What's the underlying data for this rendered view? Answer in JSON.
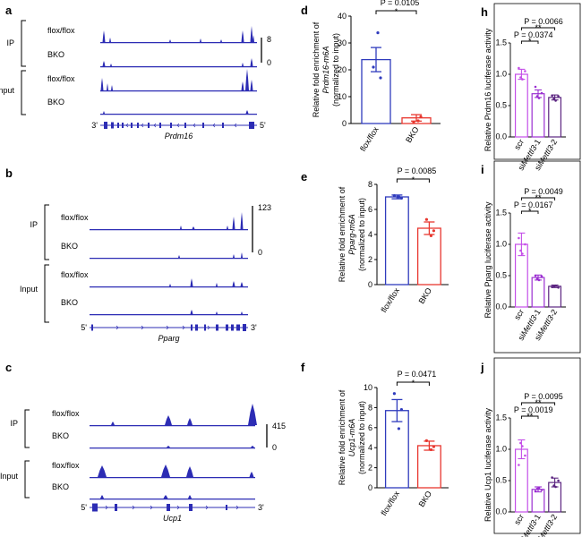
{
  "colors": {
    "track": "#2c2cb4",
    "blue": "#2f3bbd",
    "red": "#e8372f",
    "violet": "#c44ee8",
    "violet_dark": "#9b2fd1",
    "purple_dark": "#5b2480"
  },
  "panels": {
    "a": {
      "letter": "a",
      "gene": "Prdm16",
      "scale_max": "8",
      "scale_min": "0",
      "left_end": "3'",
      "right_end": "5'"
    },
    "b": {
      "letter": "b",
      "gene": "Pparg",
      "scale_max": "123",
      "scale_min": "0",
      "left_end": "5'",
      "right_end": "3'"
    },
    "c": {
      "letter": "c",
      "gene": "Ucp1",
      "scale_max": "415",
      "scale_min": "0",
      "left_end": "5'",
      "right_end": "3'"
    }
  },
  "track_labels": {
    "ip": "IP",
    "input": "Input",
    "flox": "flox/flox",
    "bko": "BKO"
  },
  "chart_data": [
    {
      "id": "d",
      "type": "bar",
      "title": "P = 0.0105",
      "significance": "*",
      "ylabel": [
        "Relative fold enrichment of",
        "Prdm16-m6A",
        "(normalized to input)"
      ],
      "categories": [
        "flox/flox",
        "BKO"
      ],
      "values": [
        23.8,
        2.1
      ],
      "errors": [
        4.5,
        1.2
      ],
      "points": [
        [
          21,
          33.8,
          17
        ],
        [
          0.5,
          1,
          2.5
        ]
      ],
      "ylim": [
        0,
        40
      ],
      "yticks": [
        0,
        10,
        20,
        30,
        40
      ]
    },
    {
      "id": "e",
      "type": "bar",
      "title": "P = 0.0085",
      "significance": "*",
      "ylabel": [
        "Relative fold enrichment of",
        "Pparg-m6A",
        "(normalized to input)"
      ],
      "categories": [
        "flox/flox",
        "BKO"
      ],
      "values": [
        7.0,
        4.5
      ],
      "errors": [
        0.15,
        0.5
      ],
      "points": [
        [
          7.1,
          7.0,
          6.9
        ],
        [
          5.2,
          3.9,
          4.3
        ]
      ],
      "ylim": [
        0,
        8
      ],
      "yticks": [
        0,
        2,
        4,
        6,
        8
      ]
    },
    {
      "id": "f",
      "type": "bar",
      "title": "P = 0.0471",
      "significance": "*",
      "ylabel": [
        "Relative fold enrichment of",
        "Ucp1-m6A",
        "(normalized to input)"
      ],
      "categories": [
        "flox/flox",
        "BKO"
      ],
      "values": [
        7.7,
        4.2
      ],
      "errors": [
        1.1,
        0.45
      ],
      "points": [
        [
          9.4,
          5.9,
          7.8
        ],
        [
          4.7,
          3.8,
          4.1
        ]
      ],
      "ylim": [
        0,
        10
      ],
      "yticks": [
        0,
        2,
        4,
        6,
        8,
        10
      ]
    },
    {
      "id": "h",
      "type": "bar",
      "title_top": "P = 0.0066",
      "title_mid": "P = 0.0374",
      "sig_top": "**",
      "sig_mid": "*",
      "ylabel": [
        "Relative Prdm16 luciferase activity"
      ],
      "categories": [
        "scr",
        "siMettl3-1",
        "siMettl3-2"
      ],
      "values": [
        1.0,
        0.69,
        0.63
      ],
      "errors": [
        0.08,
        0.06,
        0.04
      ],
      "points": [
        [
          1.1,
          0.92,
          1.05,
          0.95
        ],
        [
          0.8,
          0.62,
          0.7,
          0.65
        ],
        [
          0.66,
          0.58,
          0.65,
          0.61
        ]
      ],
      "ylim": [
        0,
        1.5
      ],
      "yticks": [
        0.0,
        0.5,
        1.0,
        1.5
      ]
    },
    {
      "id": "i",
      "type": "bar",
      "title_top": "P = 0.0049",
      "title_mid": "P = 0.0167",
      "sig_top": "**",
      "sig_mid": "*",
      "ylabel": [
        "Relative Pparg luciferase activity"
      ],
      "categories": [
        "scr",
        "siMettl3-1",
        "siMettl3-2"
      ],
      "values": [
        1.0,
        0.47,
        0.33
      ],
      "errors": [
        0.18,
        0.04,
        0.02
      ],
      "points": [
        [
          1.1,
          0.85,
          1.0,
          0.9
        ],
        [
          0.5,
          0.43,
          0.49,
          0.45
        ],
        [
          0.32,
          0.34,
          0.31,
          0.33
        ]
      ],
      "ylim": [
        0,
        1.5
      ],
      "yticks": [
        0.0,
        0.5,
        1.0,
        1.5
      ]
    },
    {
      "id": "j",
      "type": "bar",
      "title_top": "P = 0.0095",
      "title_mid": "P = 0.0019",
      "sig_top": "**",
      "sig_mid": "**",
      "ylabel": [
        "Relative Ucp1 luciferase activity"
      ],
      "categories": [
        "scr",
        "siMettl3-1",
        "siMettl3-2"
      ],
      "values": [
        1.0,
        0.36,
        0.47
      ],
      "errors": [
        0.15,
        0.04,
        0.07
      ],
      "points": [
        [
          0.75,
          1.05,
          0.9,
          1.1
        ],
        [
          0.33,
          0.38,
          0.35,
          0.37
        ],
        [
          0.55,
          0.4,
          0.5,
          0.42
        ]
      ],
      "ylim": [
        0,
        1.5
      ],
      "yticks": [
        0.0,
        0.5,
        1.0,
        1.5
      ]
    }
  ]
}
